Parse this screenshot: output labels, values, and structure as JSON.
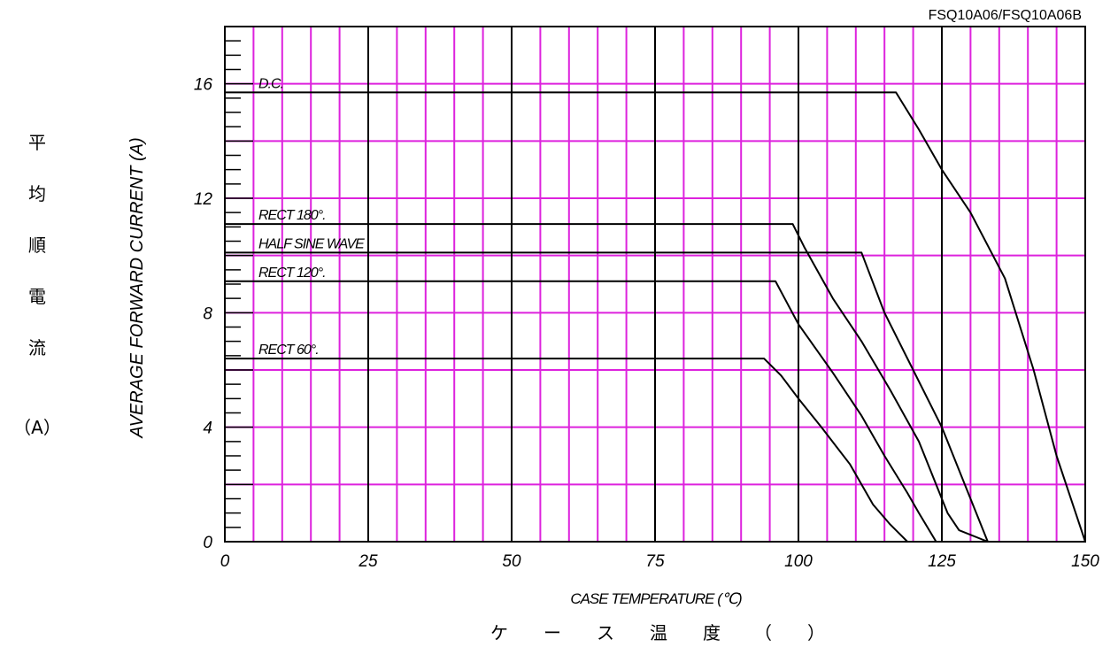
{
  "part_number": "FSQ10A06/FSQ10A06B",
  "y_axis": {
    "label_en": "AVERAGE FORWARD CURRENT (A)",
    "label_jp": [
      "平",
      "均",
      "順",
      "電",
      "流",
      "（A）"
    ]
  },
  "x_axis": {
    "label_en": "CASE TEMPERATURE (℃)",
    "label_jp": [
      "ケ",
      "ー",
      "ス",
      "温",
      "度",
      "（",
      "）"
    ]
  },
  "chart_data": {
    "type": "line",
    "title": "",
    "xlabel": "CASE TEMPERATURE (℃)",
    "ylabel": "AVERAGE FORWARD CURRENT (A)",
    "xlim": [
      0,
      150
    ],
    "ylim": [
      0,
      18
    ],
    "x_ticks": [
      0,
      25,
      50,
      75,
      100,
      125,
      150
    ],
    "y_ticks": [
      0,
      4,
      8,
      12,
      16
    ],
    "grid": true,
    "colors": {
      "grid_minor": "#dd22dd",
      "grid_major": "#000000",
      "curve": "#000000"
    },
    "series": [
      {
        "name": "D.C.",
        "x": [
          0,
          117,
          121,
          125,
          130,
          136,
          141,
          145,
          148,
          150
        ],
        "y": [
          15.7,
          15.7,
          14.4,
          13.0,
          11.5,
          9.2,
          6.0,
          3.0,
          1.2,
          0
        ]
      },
      {
        "name": "RECT 180°.",
        "x": [
          0,
          99,
          101,
          106,
          111,
          116,
          121,
          124,
          126,
          128,
          133
        ],
        "y": [
          11.1,
          11.1,
          10.3,
          8.5,
          7.0,
          5.3,
          3.5,
          2.0,
          1.0,
          0.4,
          0
        ]
      },
      {
        "name": "HALF SINE WAVE",
        "x": [
          0,
          111,
          115,
          120,
          125,
          129,
          131,
          133
        ],
        "y": [
          10.1,
          10.1,
          8.0,
          6.0,
          4.0,
          2.0,
          1.0,
          0
        ]
      },
      {
        "name": "RECT 120°.",
        "x": [
          0,
          96,
          100,
          106,
          111,
          115,
          119,
          121,
          124
        ],
        "y": [
          9.1,
          9.1,
          7.6,
          5.9,
          4.4,
          3.0,
          1.7,
          1.0,
          0
        ]
      },
      {
        "name": "RECT 60°.",
        "x": [
          0,
          94,
          97,
          100,
          104,
          109,
          113,
          116,
          119
        ],
        "y": [
          6.4,
          6.4,
          5.8,
          5.0,
          4.0,
          2.7,
          1.3,
          0.6,
          0
        ]
      }
    ]
  }
}
